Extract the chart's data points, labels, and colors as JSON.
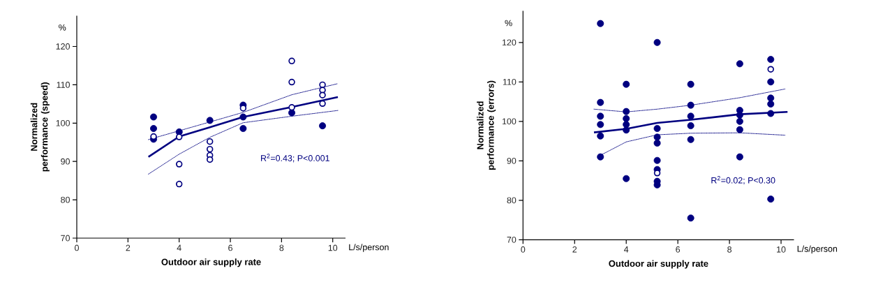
{
  "chart_data": [
    {
      "type": "scatter",
      "xlabel": "Outdoor air supply rate",
      "ylabel": "Normalized performance (speed)",
      "xlim": [
        0,
        10.5
      ],
      "xticks": [
        0,
        2,
        4,
        6,
        8,
        10
      ],
      "ylim": [
        70,
        128
      ],
      "yticks": [
        70,
        80,
        90,
        100,
        110,
        120
      ],
      "grid": false,
      "legend": false,
      "annotations": [
        "%",
        "L/s/person",
        "R$^{2}$=0.43; P<0.001"
      ],
      "series": [
        {
          "color": "#000080",
          "marker": "circle",
          "x": [
            3,
            3,
            3,
            4,
            5.2,
            6.5,
            6.5,
            6.5,
            8.4,
            9.6
          ],
          "values": [
            101.6,
            98.6,
            95.8,
            97.7,
            100.7,
            104.7,
            101.6,
            98.6,
            102.7,
            99.3
          ]
        },
        {
          "color": "#000080",
          "marker": "open circle",
          "x": [
            3,
            4,
            4,
            4,
            5.2,
            5.2,
            5.2,
            5.2,
            6.5,
            8.4,
            8.4,
            8.4,
            9.6,
            9.6,
            9.6,
            9.6
          ],
          "values": [
            96.5,
            96.4,
            89.3,
            84.1,
            95.2,
            93.2,
            91.6,
            90.5,
            103.9,
            116.2,
            110.7,
            104.1,
            110,
            108.6,
            107.3,
            105.1
          ]
        },
        {
          "type": "line",
          "color": "#000080",
          "line_style": "solid",
          "marker": "none",
          "x": [
            2.8,
            4,
            5.2,
            6.5,
            8.4,
            10.2
          ],
          "values": [
            91.2,
            96.5,
            98.9,
            101.6,
            104.2,
            106.8
          ]
        },
        {
          "type": "line",
          "color": "#000080",
          "line_style": "dotted",
          "marker": "none",
          "x": [
            2.8,
            4,
            5.2,
            6.5,
            8.4,
            10.2
          ],
          "values": [
            95.7,
            98,
            100.3,
            102.8,
            107.4,
            110.3
          ]
        },
        {
          "type": "line",
          "color": "#000080",
          "line_style": "dotted",
          "marker": "none",
          "x": [
            2.8,
            4,
            5.2,
            6.5,
            8.4,
            10.2
          ],
          "values": [
            86.7,
            91.9,
            96.3,
            100.1,
            101.8,
            103.3
          ]
        }
      ]
    },
    {
      "type": "scatter",
      "xlabel": "Outdoor air supply rate",
      "ylabel": "Normalized performance (errors)",
      "xlim": [
        0,
        10.5
      ],
      "xticks": [
        0,
        2,
        4,
        6,
        8,
        10
      ],
      "ylim": [
        70,
        128
      ],
      "yticks": [
        70,
        80,
        90,
        100,
        110,
        120
      ],
      "grid": false,
      "legend": false,
      "annotations": [
        "%",
        "L/s/person",
        "R$^{2}$=0.02; P<0.30"
      ],
      "series": [
        {
          "color": "#000080",
          "marker": "circle",
          "x": [
            3,
            3,
            3,
            3,
            3,
            3,
            4,
            4,
            4,
            4,
            4,
            4,
            5.2,
            5.2,
            5.2,
            5.2,
            5.2,
            5.2,
            5.2,
            5.2,
            6.5,
            6.5,
            6.5,
            6.5,
            6.5,
            6.5,
            8.4,
            8.4,
            8.4,
            8.4,
            8.4,
            8.4,
            9.6,
            9.6,
            9.6,
            9.6,
            9.6,
            9.6
          ],
          "values": [
            124.8,
            104.8,
            101.3,
            99.2,
            96.3,
            91,
            109.4,
            102.5,
            100.7,
            99.2,
            97.8,
            85.5,
            120,
            98.2,
            96,
            94.5,
            90.1,
            87.8,
            84.8,
            83.9,
            109.4,
            104.1,
            101.3,
            98.9,
            95.4,
            75.5,
            114.6,
            102.8,
            101.6,
            100,
            97.9,
            91,
            115.7,
            110,
            105.9,
            104.4,
            102,
            80.3
          ]
        },
        {
          "color": "#000080",
          "marker": "open circle",
          "x": [
            5.2,
            9.6
          ],
          "values": [
            86.9,
            113.2
          ]
        },
        {
          "type": "line",
          "color": "#000080",
          "line_style": "solid",
          "marker": "none",
          "x": [
            2.75,
            4,
            5.2,
            6.5,
            8.4,
            10.25
          ],
          "values": [
            97.2,
            98.1,
            99.6,
            100.4,
            101.8,
            102.4
          ]
        },
        {
          "type": "line",
          "color": "#000080",
          "line_style": "dotted",
          "marker": "none",
          "x": [
            2.75,
            4,
            5.2,
            6.5,
            8.4,
            10.15
          ],
          "values": [
            103.1,
            102.4,
            103.1,
            104.1,
            106,
            108.2
          ]
        },
        {
          "type": "line",
          "color": "#000080",
          "line_style": "dotted",
          "marker": "none",
          "x": [
            2.97,
            4,
            5.2,
            6.5,
            8.4,
            10.15
          ],
          "values": [
            91.3,
            94.8,
            96.6,
            97,
            97.1,
            96.5
          ]
        }
      ]
    }
  ]
}
